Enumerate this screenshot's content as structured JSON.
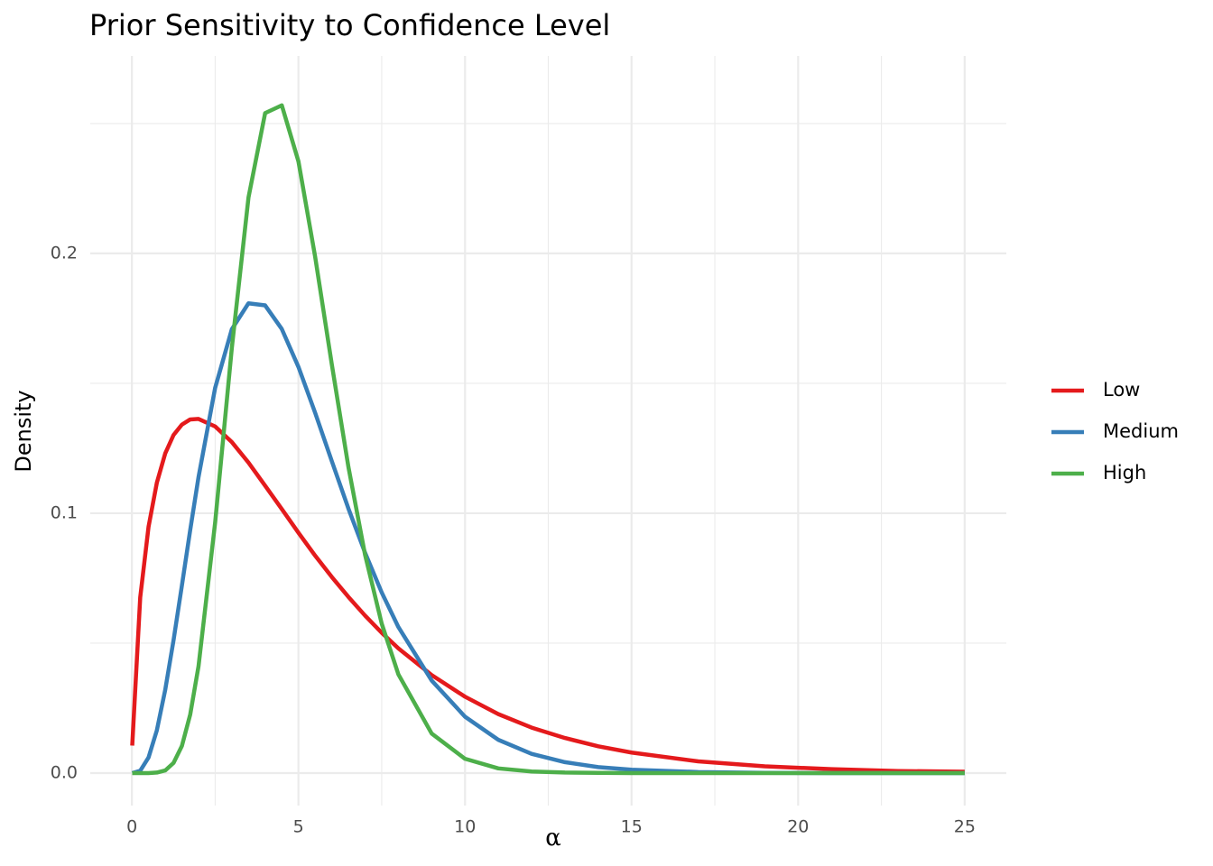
{
  "chart_data": {
    "type": "line",
    "title": "Prior Sensitivity to Confidence Level",
    "x_label": "α",
    "y_label": "Density",
    "x": [
      0.01,
      0.25,
      0.5,
      0.75,
      1,
      1.25,
      1.5,
      1.75,
      2,
      2.5,
      3,
      3.5,
      4,
      4.5,
      5,
      5.5,
      6,
      6.5,
      7,
      7.5,
      8,
      9,
      10,
      11,
      12,
      13,
      14,
      15,
      17,
      19,
      21,
      23,
      25
    ],
    "series": [
      {
        "name": "Low",
        "color": "#e41a1c",
        "values": [
          0.0106,
          0.0676,
          0.0948,
          0.1118,
          0.123,
          0.1301,
          0.1341,
          0.1361,
          0.1363,
          0.1334,
          0.1274,
          0.1195,
          0.1106,
          0.1016,
          0.0925,
          0.0837,
          0.0755,
          0.0678,
          0.0606,
          0.054,
          0.048,
          0.0377,
          0.0294,
          0.0227,
          0.0175,
          0.0135,
          0.0103,
          0.0079,
          0.0045,
          0.0026,
          0.0015,
          0.0008,
          0.0005
        ]
      },
      {
        "name": "Medium",
        "color": "#377eb8",
        "values": [
          0,
          0.0009,
          0.006,
          0.0165,
          0.032,
          0.0511,
          0.0721,
          0.0935,
          0.1139,
          0.1483,
          0.1708,
          0.1808,
          0.18,
          0.1709,
          0.1563,
          0.1387,
          0.1201,
          0.1018,
          0.0848,
          0.0695,
          0.0562,
          0.0356,
          0.0217,
          0.0128,
          0.0074,
          0.0042,
          0.0023,
          0.0013,
          0.0004,
          0.0001,
          0,
          0,
          0
        ]
      },
      {
        "name": "High",
        "color": "#4daf4a",
        "values": [
          0,
          0,
          0,
          0.0002,
          0.001,
          0.0039,
          0.0104,
          0.0225,
          0.0411,
          0.0965,
          0.1636,
          0.2215,
          0.254,
          0.257,
          0.2354,
          0.1988,
          0.1574,
          0.1178,
          0.084,
          0.0575,
          0.038,
          0.0152,
          0.0055,
          0.0018,
          0.0006,
          0.0002,
          0.0001,
          0,
          0,
          0,
          0,
          0,
          0
        ]
      }
    ],
    "xlim": [
      -1.25,
      26.25
    ],
    "xticks": [
      0,
      5,
      10,
      15,
      20,
      25
    ],
    "ylim": [
      -0.0125,
      0.276
    ],
    "yticks": [
      {
        "value": 0,
        "label": "0.0"
      },
      0.1,
      0.2
    ],
    "grid": true,
    "legend": "right"
  }
}
